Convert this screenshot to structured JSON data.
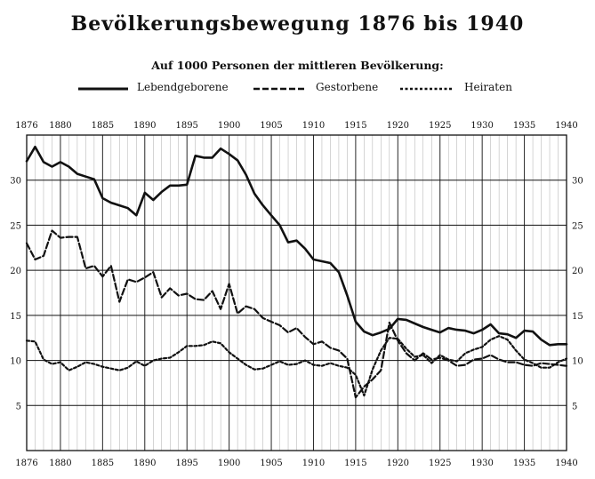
{
  "title": "Bevölkerungsbewegung 1876 bis 1940",
  "subtitle": "Auf 1000 Personen der mittleren Bevölkerung:",
  "legend": {
    "live_births": "Lebendgeborene",
    "deaths": "Gestorbene",
    "marriages": "Heiraten"
  },
  "chart_data": {
    "type": "line",
    "title": "Bevölkerungsbewegung 1876 bis 1940",
    "subtitle": "Auf 1000 Personen der mittleren Bevölkerung:",
    "xlabel": "",
    "ylabel": "",
    "xlim": [
      1876,
      1940
    ],
    "ylim": [
      0,
      35
    ],
    "x_ticks": [
      1876,
      1880,
      1885,
      1890,
      1895,
      1900,
      1905,
      1910,
      1915,
      1920,
      1925,
      1930,
      1935,
      1940
    ],
    "y_ticks": [
      5,
      10,
      15,
      20,
      25,
      30
    ],
    "grid": true,
    "legend_position": "top",
    "series": [
      {
        "name": "Lebendgeborene",
        "style": "solid",
        "x": [
          1876,
          1877,
          1878,
          1879,
          1880,
          1881,
          1882,
          1883,
          1884,
          1885,
          1886,
          1887,
          1888,
          1889,
          1890,
          1891,
          1892,
          1893,
          1894,
          1895,
          1896,
          1897,
          1898,
          1899,
          1900,
          1901,
          1902,
          1903,
          1904,
          1905,
          1906,
          1907,
          1908,
          1909,
          1910,
          1911,
          1912,
          1913,
          1914,
          1915,
          1916,
          1917,
          1918,
          1919,
          1920,
          1921,
          1922,
          1923,
          1924,
          1925,
          1926,
          1927,
          1928,
          1929,
          1930,
          1931,
          1932,
          1933,
          1934,
          1935,
          1936,
          1937,
          1938,
          1939,
          1940
        ],
        "y": [
          32.1,
          33.7,
          32.0,
          31.5,
          32.0,
          31.5,
          30.7,
          30.4,
          30.1,
          28.0,
          27.5,
          27.2,
          26.9,
          26.1,
          28.6,
          27.8,
          28.7,
          29.4,
          29.4,
          29.5,
          32.7,
          32.5,
          32.5,
          33.5,
          32.9,
          32.2,
          30.6,
          28.5,
          27.2,
          26.1,
          25.0,
          23.1,
          23.3,
          22.4,
          21.2,
          21.0,
          20.8,
          19.8,
          17.2,
          14.3,
          13.2,
          12.8,
          13.1,
          13.5,
          14.6,
          14.5,
          14.1,
          13.7,
          13.4,
          13.1,
          13.6,
          13.4,
          13.3,
          13.0,
          13.4,
          14.0,
          13.0,
          12.9,
          12.5,
          13.3,
          13.2,
          12.3,
          11.7,
          11.8,
          11.8
        ]
      },
      {
        "name": "Gestorbene",
        "style": "dashed",
        "x": [
          1876,
          1877,
          1878,
          1879,
          1880,
          1881,
          1882,
          1883,
          1884,
          1885,
          1886,
          1887,
          1888,
          1889,
          1890,
          1891,
          1892,
          1893,
          1894,
          1895,
          1896,
          1897,
          1898,
          1899,
          1900,
          1901,
          1902,
          1903,
          1904,
          1905,
          1906,
          1907,
          1908,
          1909,
          1910,
          1911,
          1912,
          1913,
          1914,
          1915,
          1916,
          1917,
          1918,
          1919,
          1920,
          1921,
          1922,
          1923,
          1924,
          1925,
          1926,
          1927,
          1928,
          1929,
          1930,
          1931,
          1932,
          1933,
          1934,
          1935,
          1936,
          1937,
          1938,
          1939,
          1940
        ],
        "y": [
          23.0,
          21.2,
          21.6,
          24.4,
          23.6,
          23.7,
          23.7,
          20.2,
          20.5,
          19.3,
          20.5,
          16.5,
          19.0,
          18.7,
          19.2,
          19.8,
          17.0,
          18.0,
          17.2,
          17.4,
          16.8,
          16.7,
          17.7,
          15.7,
          18.5,
          15.2,
          16.0,
          15.7,
          14.7,
          14.3,
          13.9,
          13.1,
          13.6,
          12.6,
          11.8,
          12.1,
          11.4,
          11.1,
          10.2,
          5.9,
          7.1,
          7.9,
          8.9,
          14.2,
          12.2,
          10.8,
          10.0,
          10.8,
          10.1,
          10.3,
          10.0,
          9.4,
          9.5,
          10.1,
          10.2,
          10.6,
          10.1,
          9.8,
          9.8,
          9.5,
          9.4,
          9.7,
          9.6,
          9.5,
          9.4
        ]
      },
      {
        "name": "Heiraten",
        "style": "dotted",
        "x": [
          1876,
          1877,
          1878,
          1879,
          1880,
          1881,
          1882,
          1883,
          1884,
          1885,
          1886,
          1887,
          1888,
          1889,
          1890,
          1891,
          1892,
          1893,
          1894,
          1895,
          1896,
          1897,
          1898,
          1899,
          1900,
          1901,
          1902,
          1903,
          1904,
          1905,
          1906,
          1907,
          1908,
          1909,
          1910,
          1911,
          1912,
          1913,
          1914,
          1915,
          1916,
          1917,
          1918,
          1919,
          1920,
          1921,
          1922,
          1923,
          1924,
          1925,
          1926,
          1927,
          1928,
          1929,
          1930,
          1931,
          1932,
          1933,
          1934,
          1935,
          1936,
          1937,
          1938,
          1939,
          1940
        ],
        "y": [
          12.2,
          12.1,
          10.1,
          9.6,
          9.8,
          8.9,
          9.3,
          9.8,
          9.6,
          9.3,
          9.1,
          8.9,
          9.2,
          9.9,
          9.4,
          10.0,
          10.2,
          10.3,
          10.9,
          11.6,
          11.6,
          11.7,
          12.1,
          11.9,
          10.9,
          10.2,
          9.5,
          9.0,
          9.1,
          9.5,
          9.9,
          9.5,
          9.6,
          10.0,
          9.5,
          9.4,
          9.7,
          9.4,
          9.2,
          8.4,
          6.1,
          9.0,
          11.1,
          12.5,
          12.4,
          11.3,
          10.4,
          10.6,
          9.7,
          10.6,
          10.1,
          9.9,
          10.8,
          11.2,
          11.5,
          12.3,
          12.7,
          12.3,
          11.1,
          10.1,
          9.7,
          9.2,
          9.2,
          9.8,
          10.2
        ]
      }
    ]
  }
}
